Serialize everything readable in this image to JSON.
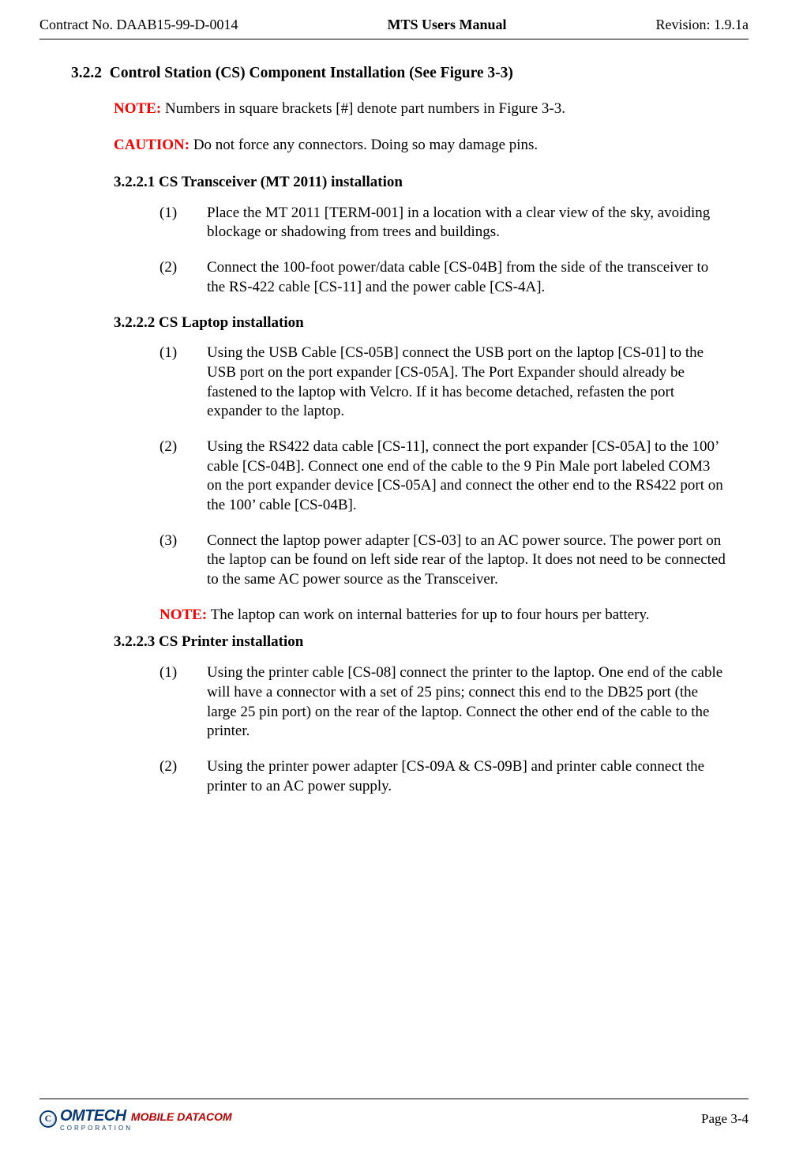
{
  "header": {
    "left": "Contract No. DAAB15-99-D-0014",
    "center": "MTS Users Manual",
    "right": "Revision:  1.9.1a"
  },
  "section": {
    "number": "3.2.2",
    "title": "Control Station (CS) Component Installation (See Figure 3-3)"
  },
  "note1": {
    "label": "NOTE:",
    "text": "  Numbers in square brackets [#] denote part numbers in Figure 3-3."
  },
  "caution": {
    "label": "CAUTION:",
    "text": "  Do not force any connectors.  Doing so may damage pins."
  },
  "sub1": {
    "heading": "3.2.2.1 CS Transceiver (MT 2011) installation",
    "items": [
      {
        "num": "(1)",
        "text": "Place the MT 2011 [TERM-001] in a location with a clear view of the sky, avoiding blockage or shadowing from trees and buildings."
      },
      {
        "num": "(2)",
        "text": "Connect the 100-foot power/data cable [CS-04B] from the side of the transceiver to the RS-422 cable [CS-11] and the power cable [CS-4A]."
      }
    ]
  },
  "sub2": {
    "heading": "3.2.2.2 CS Laptop installation",
    "items": [
      {
        "num": "(1)",
        "text": "Using the USB Cable [CS-05B] connect the USB port on the laptop [CS-01] to the USB port on the port expander [CS-05A].  The Port Expander should already be fastened to the laptop with Velcro.  If it has become detached, refasten the port expander to the laptop."
      },
      {
        "num": "(2)",
        "text": "Using the RS422 data cable [CS-11], connect the port expander [CS-05A] to the 100’ cable [CS-04B].  Connect one end of the cable to the 9 Pin Male port labeled COM3 on the port expander device [CS-05A] and connect the other end to the RS422 port on the 100’ cable [CS-04B]."
      },
      {
        "num": "(3)",
        "text": "Connect the laptop power adapter [CS-03] to an AC power source.  The power port on the laptop can be found on left side rear of the laptop.  It does not need to be connected to the same AC power source as the Transceiver."
      }
    ],
    "note": {
      "label": "NOTE:",
      "text": " The laptop can work on internal batteries for up to four hours per battery."
    }
  },
  "sub3": {
    "heading": "3.2.2.3 CS Printer installation",
    "items": [
      {
        "num": "(1)",
        "text": "Using the printer cable [CS-08] connect the printer to the laptop.  One end of the cable will have a connector with a set of 25 pins; connect this end to the DB25 port (the large 25 pin port) on the rear of the laptop.  Connect the other end of the cable to the printer."
      },
      {
        "num": "(2)",
        "text": "Using the printer power adapter [CS-09A & CS-09B] and printer cable connect the printer to an AC power supply."
      }
    ]
  },
  "footer": {
    "logo_main": "OMTECH",
    "logo_sub": "MOBILE DATACOM",
    "logo_corp": "CORPORATION",
    "page": "Page 3-4"
  },
  "colors": {
    "note_red": "#ff0000",
    "logo_blue": "#0a3a73",
    "logo_red": "#c00000",
    "text": "#000000",
    "bg": "#ffffff"
  }
}
